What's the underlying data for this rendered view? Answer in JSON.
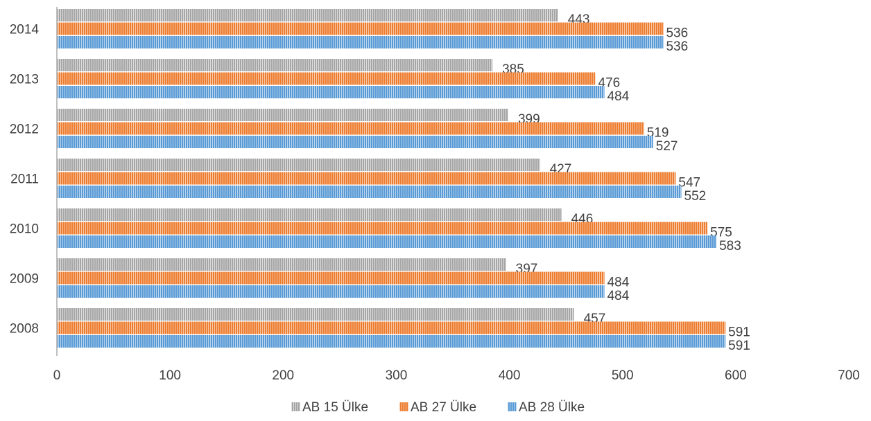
{
  "chart_data": {
    "type": "bar",
    "orientation": "horizontal",
    "categories": [
      "2008",
      "2009",
      "2010",
      "2011",
      "2012",
      "2013",
      "2014"
    ],
    "series": [
      {
        "name": "AB 15 Ülke",
        "color": "#a6a6a6",
        "values": [
          457,
          397,
          446,
          427,
          399,
          385,
          443
        ]
      },
      {
        "name": "AB 27 Ülke",
        "color": "#ed7d31",
        "values": [
          591,
          484,
          575,
          547,
          519,
          476,
          536
        ]
      },
      {
        "name": "AB 28 Ülke",
        "color": "#5b9bd5",
        "values": [
          591,
          484,
          583,
          552,
          527,
          484,
          536
        ]
      }
    ],
    "x_ticks": [
      "0",
      "100",
      "200",
      "300",
      "400",
      "500",
      "600",
      "700"
    ],
    "xlim": [
      0,
      700
    ],
    "grid": false,
    "legend_position": "bottom",
    "data_labels": true
  }
}
